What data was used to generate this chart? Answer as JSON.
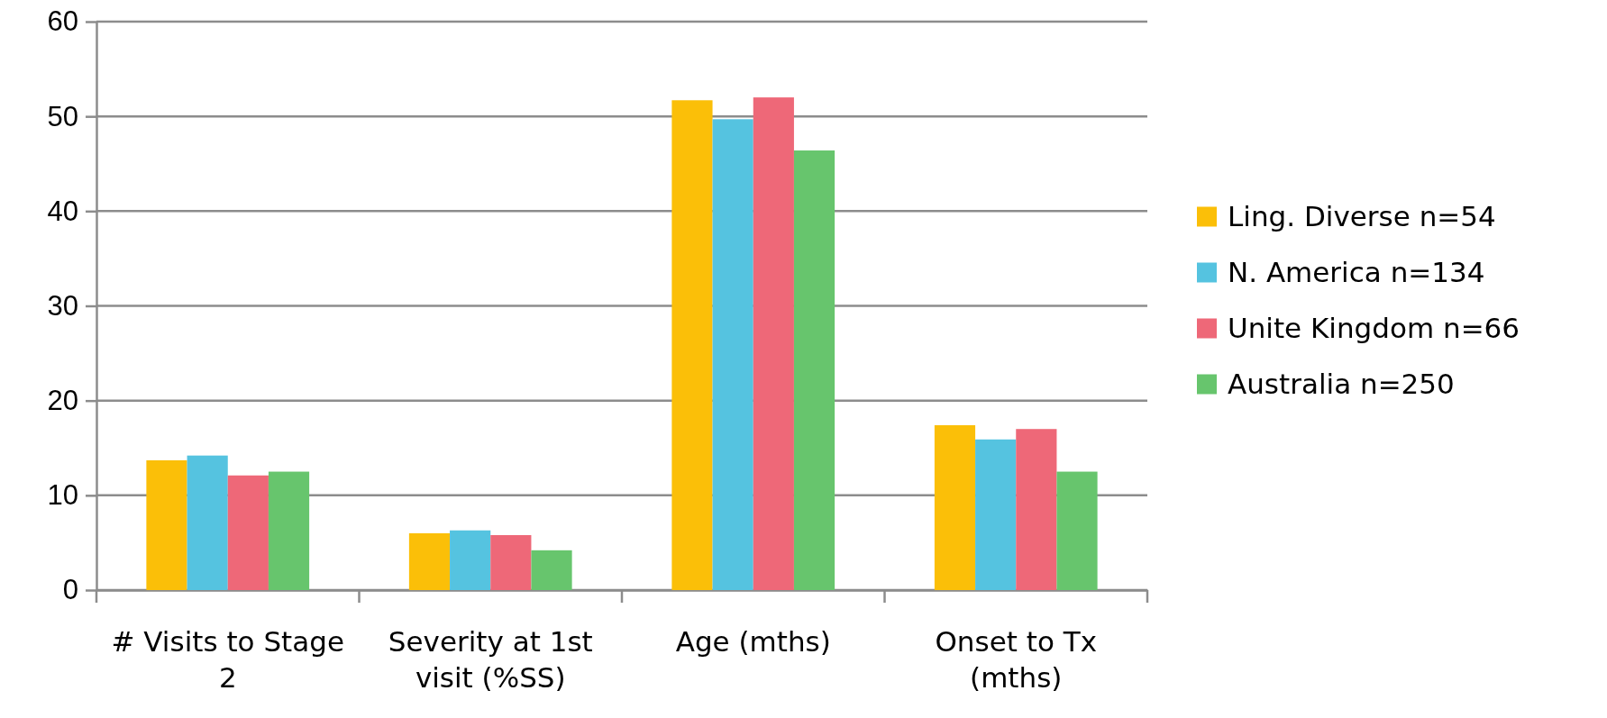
{
  "chart_data": {
    "type": "bar",
    "categories": [
      "# Visits to Stage 2",
      "Severity at 1st visit (%SS)",
      "Age (mths)",
      "Onset to Tx (mths)"
    ],
    "series": [
      {
        "name": "Ling. Diverse n=54",
        "color": "#fbbf08",
        "values": [
          13.7,
          6.0,
          51.7,
          17.4
        ]
      },
      {
        "name": "N. America n=134",
        "color": "#55c3e0",
        "values": [
          14.2,
          6.3,
          49.7,
          15.9
        ]
      },
      {
        "name": "Unite Kingdom n=66",
        "color": "#ee6878",
        "values": [
          12.1,
          5.8,
          52.0,
          17.0
        ]
      },
      {
        "name": "Australia n=250",
        "color": "#67c56d",
        "values": [
          12.5,
          4.2,
          46.4,
          12.5
        ]
      }
    ],
    "ylim": [
      0,
      60
    ],
    "yticks": [
      0,
      10,
      20,
      30,
      40,
      50,
      60
    ],
    "grid": "y",
    "legend": "right"
  }
}
